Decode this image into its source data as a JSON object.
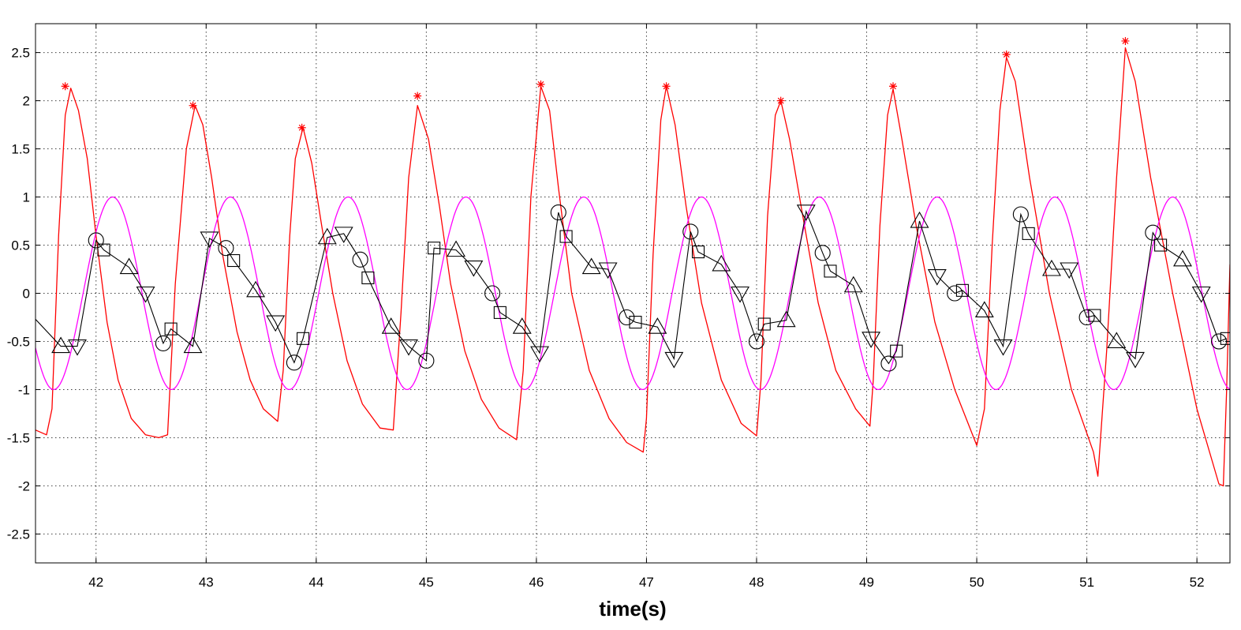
{
  "chart_data": {
    "type": "line",
    "title": "",
    "xlabel": "time(s)",
    "ylabel": "",
    "xlim": [
      41.45,
      52.3
    ],
    "ylim": [
      -2.8,
      2.8
    ],
    "grid": true,
    "x_ticks": [
      42,
      43,
      44,
      45,
      46,
      47,
      48,
      49,
      50,
      51,
      52
    ],
    "y_ticks": [
      2.5,
      2,
      1.5,
      1,
      0.5,
      0,
      -0.5,
      -1,
      -1.5,
      -2,
      -2.5
    ],
    "x_tick_labels": [
      "42",
      "43",
      "44",
      "45",
      "46",
      "47",
      "48",
      "49",
      "50",
      "51",
      "52"
    ],
    "y_tick_labels": [
      "2.5",
      "2",
      "1.5",
      "1",
      "0.5",
      "0",
      "-0.5",
      "-1",
      "-1.5",
      "-2",
      "-2.5"
    ],
    "colors": {
      "red": "#ff0000",
      "magenta": "#ff00ff",
      "black": "#000000"
    },
    "series": [
      {
        "color": "#ff0000",
        "style": "line",
        "x": [
          41.45,
          41.55,
          41.6,
          41.66,
          41.72,
          41.77,
          41.84,
          41.92,
          42.0,
          42.1,
          42.2,
          42.32,
          42.45,
          42.57,
          42.65,
          42.72,
          42.82,
          42.9,
          42.97,
          43.05,
          43.15,
          43.28,
          43.4,
          43.52,
          43.65,
          43.7,
          43.76,
          43.81,
          43.88,
          43.96,
          44.05,
          44.15,
          44.28,
          44.42,
          44.58,
          44.7,
          44.77,
          44.84,
          44.92,
          45.02,
          45.12,
          45.22,
          45.35,
          45.5,
          45.66,
          45.82,
          45.88,
          45.95,
          46.04,
          46.12,
          46.2,
          46.32,
          46.48,
          46.66,
          46.82,
          46.97,
          47.0,
          47.06,
          47.13,
          47.18,
          47.26,
          47.36,
          47.5,
          47.68,
          47.86,
          48.0,
          48.04,
          48.1,
          48.17,
          48.22,
          48.3,
          48.42,
          48.56,
          48.72,
          48.9,
          49.03,
          49.06,
          49.12,
          49.19,
          49.24,
          49.32,
          49.45,
          49.62,
          49.8,
          50.0,
          50.07,
          50.14,
          50.21,
          50.27,
          50.35,
          50.48,
          50.66,
          50.86,
          51.06,
          51.1,
          51.18,
          51.27,
          51.35,
          51.44,
          51.58,
          51.78,
          52.0,
          52.2,
          52.24,
          52.27,
          52.3
        ],
        "y": [
          -1.42,
          -1.47,
          -1.2,
          0.6,
          1.85,
          2.13,
          1.9,
          1.4,
          0.6,
          -0.3,
          -0.9,
          -1.3,
          -1.47,
          -1.5,
          -1.47,
          0.1,
          1.5,
          1.95,
          1.75,
          1.2,
          0.4,
          -0.4,
          -0.9,
          -1.2,
          -1.33,
          -0.8,
          0.6,
          1.4,
          1.72,
          1.35,
          0.7,
          0.0,
          -0.7,
          -1.15,
          -1.4,
          -1.42,
          -0.2,
          1.2,
          1.95,
          1.6,
          0.9,
          0.1,
          -0.6,
          -1.1,
          -1.4,
          -1.52,
          -0.8,
          1.0,
          2.15,
          1.9,
          1.1,
          0.0,
          -0.8,
          -1.3,
          -1.55,
          -1.65,
          -1.3,
          0.4,
          1.8,
          2.15,
          1.75,
          0.9,
          -0.1,
          -0.9,
          -1.35,
          -1.48,
          -0.9,
          0.8,
          1.85,
          2.0,
          1.6,
          0.8,
          -0.1,
          -0.8,
          -1.2,
          -1.38,
          -0.9,
          0.7,
          1.85,
          2.12,
          1.6,
          0.7,
          -0.3,
          -1.0,
          -1.58,
          -1.2,
          0.5,
          1.9,
          2.45,
          2.2,
          1.2,
          0.0,
          -1.0,
          -1.65,
          -1.9,
          -0.6,
          1.2,
          2.55,
          2.2,
          1.2,
          0.0,
          -1.2,
          -1.98,
          -2.0,
          -1.0,
          0.3
        ]
      },
      {
        "color": "#ff0000",
        "style": "markers",
        "marker": "star",
        "x": [
          41.72,
          42.88,
          43.87,
          44.92,
          46.04,
          47.18,
          48.22,
          49.24,
          50.27,
          51.35
        ],
        "y": [
          2.15,
          1.95,
          1.72,
          2.05,
          2.17,
          2.15,
          2.0,
          2.15,
          2.48,
          2.62
        ]
      },
      {
        "color": "#ff00ff",
        "style": "sine",
        "period": 1.07,
        "peak_x": 42.15,
        "amplitude": 1
      },
      {
        "color": "#000000",
        "style": "line-markers",
        "points": [
          [
            41.45,
            -0.27,
            "none"
          ],
          [
            41.68,
            -0.55,
            "triangle-up"
          ],
          [
            41.83,
            -0.55,
            "triangle-down"
          ],
          [
            42.0,
            0.55,
            "circle"
          ],
          [
            42.07,
            0.45,
            "square"
          ],
          [
            42.3,
            0.27,
            "triangle-up"
          ],
          [
            42.45,
            0.0,
            "triangle-down"
          ],
          [
            42.61,
            -0.52,
            "circle"
          ],
          [
            42.68,
            -0.37,
            "square"
          ],
          [
            42.88,
            -0.55,
            "triangle-up"
          ],
          [
            43.03,
            0.57,
            "triangle-down"
          ],
          [
            43.18,
            0.47,
            "circle"
          ],
          [
            43.25,
            0.34,
            "square"
          ],
          [
            43.45,
            0.03,
            "triangle-up"
          ],
          [
            43.63,
            -0.3,
            "triangle-down"
          ],
          [
            43.8,
            -0.72,
            "circle"
          ],
          [
            43.88,
            -0.47,
            "square"
          ],
          [
            44.1,
            0.58,
            "triangle-up"
          ],
          [
            44.25,
            0.62,
            "triangle-down"
          ],
          [
            44.4,
            0.35,
            "circle"
          ],
          [
            44.47,
            0.16,
            "square"
          ],
          [
            44.68,
            -0.35,
            "triangle-up"
          ],
          [
            44.84,
            -0.55,
            "triangle-down"
          ],
          [
            45.0,
            -0.7,
            "circle"
          ],
          [
            45.07,
            0.47,
            "square"
          ],
          [
            45.27,
            0.45,
            "triangle-up"
          ],
          [
            45.43,
            0.27,
            "triangle-down"
          ],
          [
            45.6,
            0.0,
            "circle"
          ],
          [
            45.67,
            -0.2,
            "square"
          ],
          [
            45.87,
            -0.35,
            "triangle-up"
          ],
          [
            46.03,
            -0.62,
            "triangle-down"
          ],
          [
            46.2,
            0.84,
            "circle"
          ],
          [
            46.27,
            0.59,
            "square"
          ],
          [
            46.5,
            0.27,
            "triangle-up"
          ],
          [
            46.65,
            0.25,
            "triangle-down"
          ],
          [
            46.82,
            -0.25,
            "circle"
          ],
          [
            46.9,
            -0.3,
            "square"
          ],
          [
            47.1,
            -0.35,
            "triangle-up"
          ],
          [
            47.25,
            -0.68,
            "triangle-down"
          ],
          [
            47.4,
            0.64,
            "circle"
          ],
          [
            47.47,
            0.43,
            "square"
          ],
          [
            47.68,
            0.3,
            "triangle-up"
          ],
          [
            47.85,
            0.0,
            "triangle-down"
          ],
          [
            48.0,
            -0.5,
            "circle"
          ],
          [
            48.07,
            -0.32,
            "square"
          ],
          [
            48.27,
            -0.28,
            "triangle-up"
          ],
          [
            48.45,
            0.85,
            "triangle-down"
          ],
          [
            48.6,
            0.42,
            "circle"
          ],
          [
            48.67,
            0.23,
            "square"
          ],
          [
            48.88,
            0.08,
            "triangle-up"
          ],
          [
            49.04,
            -0.47,
            "triangle-down"
          ],
          [
            49.2,
            -0.73,
            "circle"
          ],
          [
            49.27,
            -0.6,
            "square"
          ],
          [
            49.48,
            0.75,
            "triangle-up"
          ],
          [
            49.64,
            0.18,
            "triangle-down"
          ],
          [
            49.8,
            0.0,
            "circle"
          ],
          [
            49.87,
            0.03,
            "square"
          ],
          [
            50.07,
            -0.18,
            "triangle-up"
          ],
          [
            50.24,
            -0.55,
            "triangle-down"
          ],
          [
            50.4,
            0.82,
            "circle"
          ],
          [
            50.47,
            0.62,
            "square"
          ],
          [
            50.68,
            0.25,
            "triangle-up"
          ],
          [
            50.84,
            0.25,
            "triangle-down"
          ],
          [
            51.0,
            -0.25,
            "circle"
          ],
          [
            51.07,
            -0.23,
            "square"
          ],
          [
            51.27,
            -0.5,
            "triangle-up"
          ],
          [
            51.44,
            -0.68,
            "triangle-down"
          ],
          [
            51.6,
            0.63,
            "circle"
          ],
          [
            51.67,
            0.5,
            "square"
          ],
          [
            51.87,
            0.35,
            "triangle-up"
          ],
          [
            52.04,
            0.0,
            "triangle-down"
          ],
          [
            52.2,
            -0.5,
            "circle"
          ],
          [
            52.27,
            -0.47,
            "square"
          ]
        ]
      }
    ]
  }
}
